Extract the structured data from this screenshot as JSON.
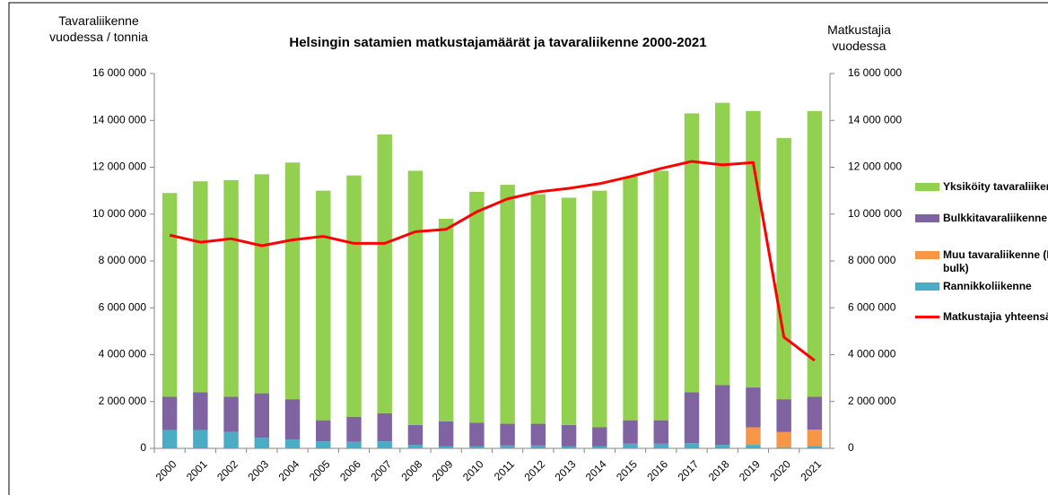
{
  "chart_data": {
    "type": "bar",
    "title": "Helsingin satamien matkustajamäärät ja tavaraliikenne 2000-2021",
    "ylabel": "Tavaraliikenne vuodessa / tonnia",
    "y2label": "Matkustajia vuodessa",
    "stacked": true,
    "grid": false,
    "legend": "right",
    "categories": [
      "2000",
      "2001",
      "2002",
      "2003",
      "2004",
      "2005",
      "2006",
      "2007",
      "2008",
      "2009",
      "2010",
      "2011",
      "2012",
      "2013",
      "2014",
      "2015",
      "2016",
      "2017",
      "2018",
      "2019",
      "2020",
      "2021"
    ],
    "series": [
      {
        "name": "Yksiköity tavaraliikenne",
        "color": "#92d050",
        "values": [
          8700000,
          9000000,
          9250000,
          9350000,
          10100000,
          9800000,
          10300000,
          11900000,
          10850000,
          8650000,
          9850000,
          10200000,
          9800000,
          9700000,
          10100000,
          10400000,
          10650000,
          11900000,
          12050000,
          11800000,
          11150000,
          12200000
        ]
      },
      {
        "name": "Bulkkitavaraliikenne",
        "color": "#8064a2",
        "values": [
          1420000,
          1620000,
          1500000,
          1900000,
          1720000,
          900000,
          1070000,
          1200000,
          850000,
          1070000,
          1020000,
          930000,
          930000,
          920000,
          820000,
          1000000,
          1000000,
          2180000,
          2550000,
          1700000,
          1400000,
          1400000
        ]
      },
      {
        "name": "Muu tavaraliikenne (Break bulk)",
        "color": "#f79646",
        "values": [
          0,
          0,
          0,
          0,
          0,
          0,
          0,
          0,
          0,
          0,
          0,
          0,
          0,
          0,
          0,
          0,
          0,
          0,
          0,
          750000,
          650000,
          700000
        ]
      },
      {
        "name": "Rannikkoliikenne",
        "color": "#4bacc6",
        "values": [
          780000,
          780000,
          700000,
          450000,
          380000,
          300000,
          280000,
          300000,
          150000,
          80000,
          80000,
          120000,
          120000,
          80000,
          80000,
          200000,
          200000,
          220000,
          150000,
          150000,
          50000,
          100000
        ]
      },
      {
        "name": "Matkustajia yhteensä",
        "color": "#ff0000",
        "type": "line",
        "axis": "y2",
        "values": [
          9100000,
          8800000,
          8950000,
          8650000,
          8900000,
          9050000,
          8750000,
          8750000,
          9250000,
          9350000,
          10100000,
          10650000,
          10950000,
          11100000,
          11300000,
          11600000,
          11950000,
          12250000,
          12100000,
          12200000,
          4750000,
          3750000
        ]
      }
    ],
    "ylim": [
      0,
      16000000
    ],
    "yticks": [
      {
        "value": 0,
        "label": "0"
      },
      {
        "value": 2000000,
        "label": "2 000 000"
      },
      {
        "value": 4000000,
        "label": "4 000 000"
      },
      {
        "value": 6000000,
        "label": "6 000 000"
      },
      {
        "value": 8000000,
        "label": "8 000 000"
      },
      {
        "value": 10000000,
        "label": "10 000 000"
      },
      {
        "value": 12000000,
        "label": "12 000 000"
      },
      {
        "value": 14000000,
        "label": "14 000 000"
      },
      {
        "value": 16000000,
        "label": "16 000 000"
      }
    ],
    "y2lim": [
      0,
      16000000
    ],
    "y2ticks": [
      {
        "value": 0,
        "label": "0"
      },
      {
        "value": 2000000,
        "label": "2 000 000"
      },
      {
        "value": 4000000,
        "label": "4 000 000"
      },
      {
        "value": 6000000,
        "label": "6 000 000"
      },
      {
        "value": 8000000,
        "label": "8 000 000"
      },
      {
        "value": 10000000,
        "label": "10 000 000"
      },
      {
        "value": 12000000,
        "label": "12 000 000"
      },
      {
        "value": 14000000,
        "label": "14 000 000"
      },
      {
        "value": 16000000,
        "label": "16 000 000"
      }
    ]
  }
}
